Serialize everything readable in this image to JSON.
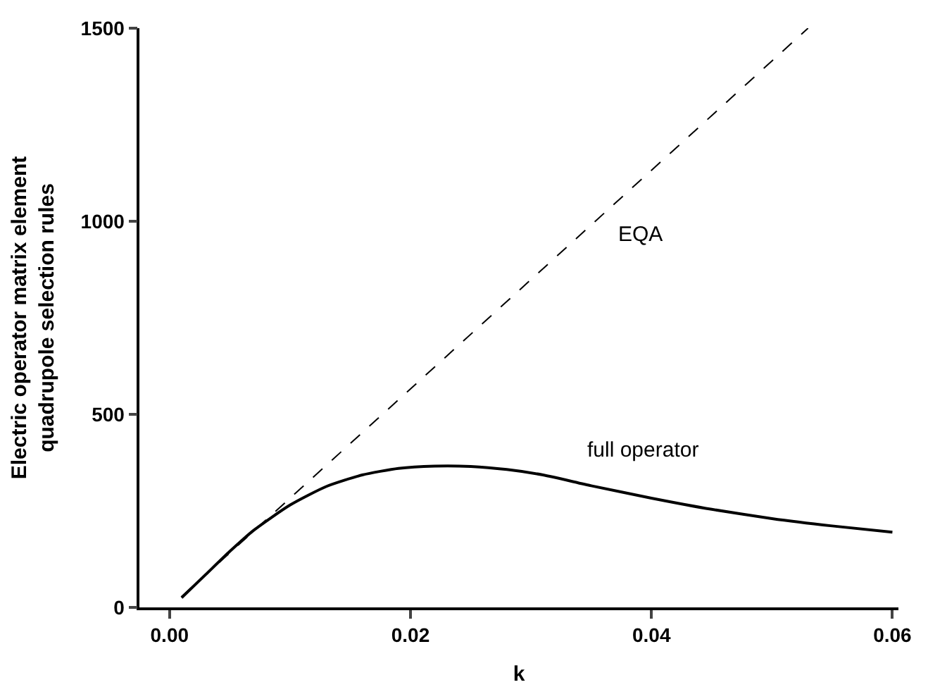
{
  "chart_data": {
    "type": "line",
    "xlabel": "k",
    "ylabel": "Electric operator matrix element\nquadrupole selection rules",
    "xlim": [
      -0.0025,
      0.0605
    ],
    "xticks": [
      {
        "value": 0,
        "label": "0.00"
      },
      0.02,
      0.04,
      0.06
    ],
    "ylim": [
      0,
      1500
    ],
    "yticks": [
      0,
      500,
      1000,
      1500
    ],
    "marker": "none",
    "series": [
      {
        "color": "#000000",
        "line_style": "dashed",
        "x": [
          0.001,
          0.053
        ],
        "values": [
          28,
          1500
        ]
      },
      {
        "color": "#000000",
        "line_style": "solid",
        "x": [
          0.001,
          0.003,
          0.005,
          0.007,
          0.01,
          0.013,
          0.016,
          0.019,
          0.022,
          0.025,
          0.028,
          0.031,
          0.035,
          0.04,
          0.045,
          0.05,
          0.055,
          0.06
        ],
        "values": [
          25,
          85,
          145,
          200,
          265,
          313,
          343,
          360,
          366,
          365,
          357,
          343,
          315,
          283,
          254,
          230,
          211,
          195
        ]
      }
    ],
    "annotations": [
      "EQA",
      "full operator"
    ]
  }
}
